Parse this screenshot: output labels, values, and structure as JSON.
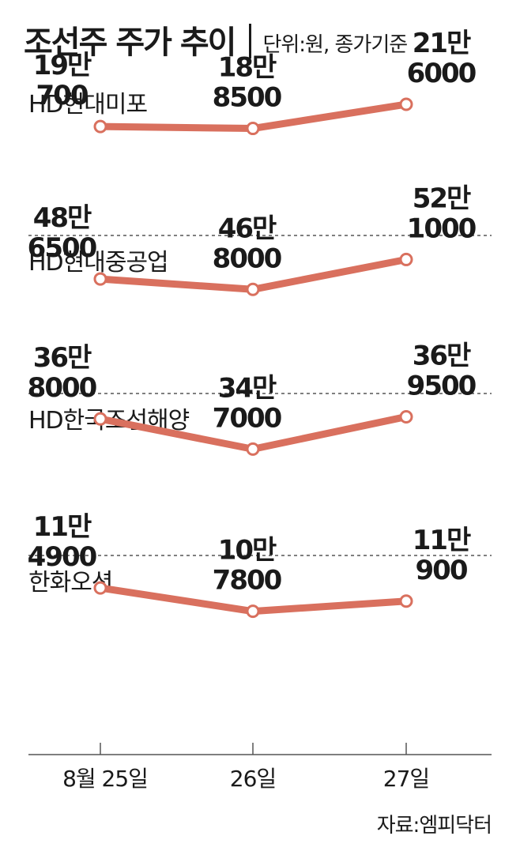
{
  "header": {
    "title": "조선주 주가 추이",
    "unit": "단위:원, 종가기준"
  },
  "chart_data": {
    "type": "line",
    "x_labels": [
      "8월 25일",
      "26일",
      "27일"
    ],
    "series": [
      {
        "name": "HD현대미포",
        "values": [
          190700,
          188500,
          216000
        ],
        "labels": [
          [
            "19만",
            "700"
          ],
          [
            "18만",
            "8500"
          ],
          [
            "21만",
            "6000"
          ]
        ],
        "ylim": [
          180000,
          225000
        ]
      },
      {
        "name": "HD현대중공업",
        "values": [
          486500,
          468000,
          521000
        ],
        "labels": [
          [
            "48만",
            "6500"
          ],
          [
            "46만",
            "8000"
          ],
          [
            "52만",
            "1000"
          ]
        ],
        "ylim": [
          460000,
          530000
        ]
      },
      {
        "name": "HD한국조선해양",
        "values": [
          368000,
          347000,
          369500
        ],
        "labels": [
          [
            "36만",
            "8000"
          ],
          [
            "34만",
            "7000"
          ],
          [
            "36만",
            "9500"
          ]
        ],
        "ylim": [
          345000,
          372500
        ]
      },
      {
        "name": "한화오션",
        "values": [
          114900,
          107800,
          110900
        ],
        "labels": [
          [
            "11만",
            "4900"
          ],
          [
            "10만",
            "7800"
          ],
          [
            "11만",
            "900"
          ]
        ],
        "ylim": [
          107000,
          119000
        ]
      }
    ],
    "line_color": "#d9705e"
  },
  "footer": {
    "source": "자료:엠피닥터"
  }
}
